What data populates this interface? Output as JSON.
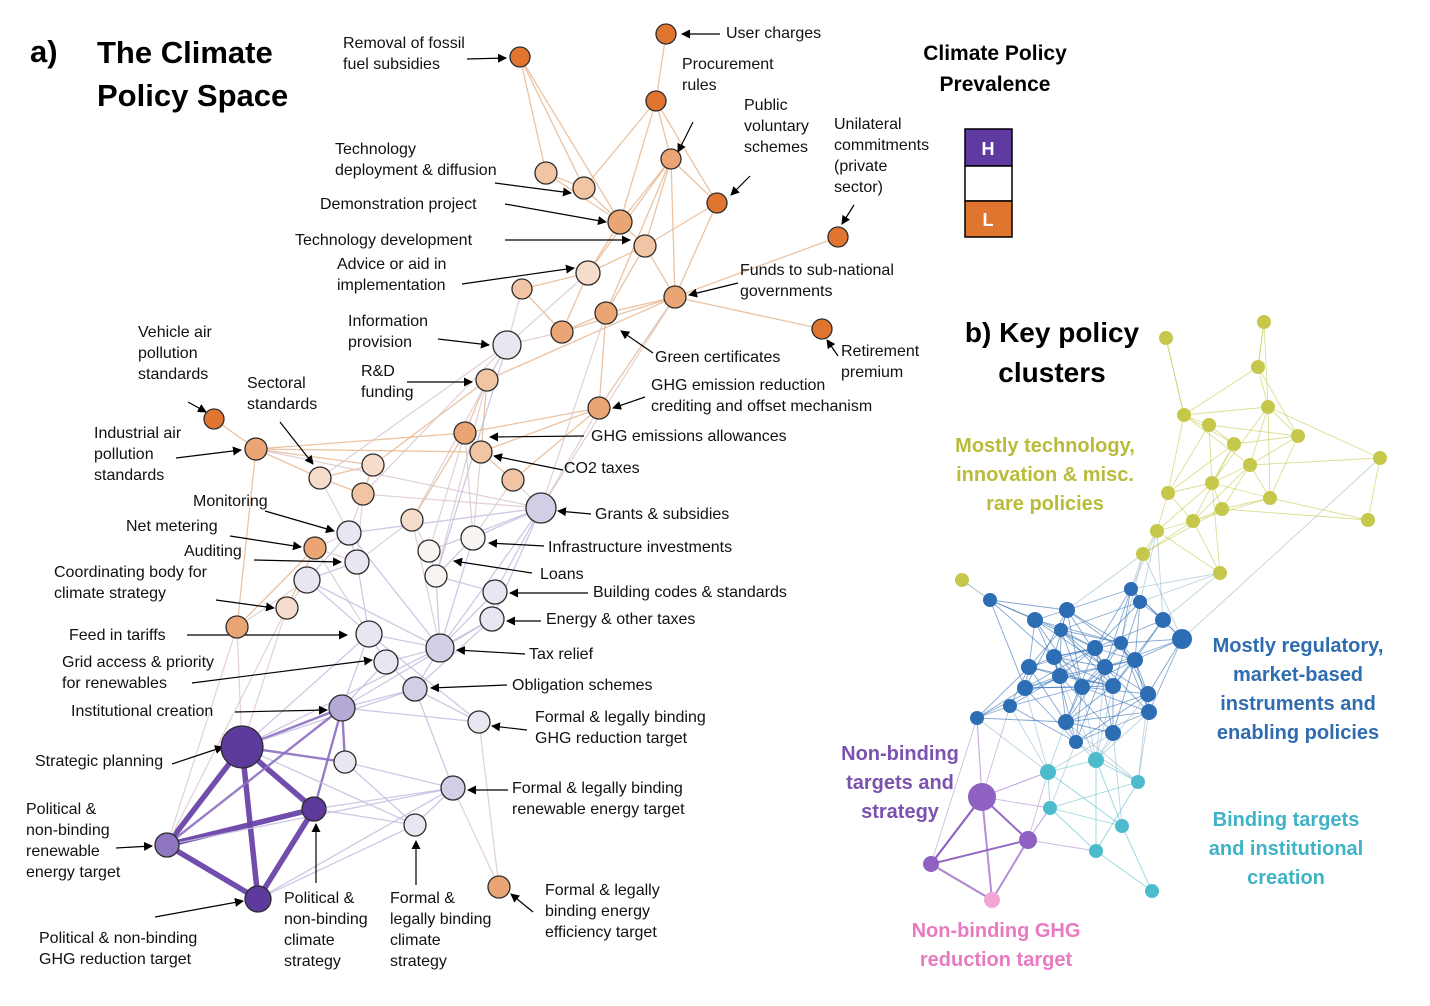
{
  "panel_a": {
    "tag": "a)",
    "title_lines": [
      "The Climate",
      "Policy Space"
    ]
  },
  "legend": {
    "title_lines": [
      "Climate Policy",
      "Prevalence"
    ],
    "high": "H",
    "low": "L",
    "colors": {
      "high": "#5f3aa0",
      "mid": "#ffffff",
      "low": "#e07530"
    }
  },
  "panel_b": {
    "title_lines": [
      "b) Key policy",
      "clusters"
    ],
    "clusters": [
      {
        "lines": [
          "Mostly technology,",
          "innovation & misc.",
          "rare policies"
        ],
        "color": "#b9bb3a"
      },
      {
        "lines": [
          "Mostly regulatory,",
          "market-based",
          "instruments and",
          "enabling policies"
        ],
        "color": "#2f6db0"
      },
      {
        "lines": [
          "Non-binding",
          "targets and",
          "strategy"
        ],
        "color": "#7b52ae"
      },
      {
        "lines": [
          "Binding targets",
          "and institutional",
          "creation"
        ],
        "color": "#3fb3c5"
      },
      {
        "lines": [
          "Non-binding GHG",
          "reduction target"
        ],
        "color": "#e87ac0"
      }
    ]
  },
  "policies": [
    {
      "lines": [
        "User charges"
      ]
    },
    {
      "lines": [
        "Removal of fossil",
        "fuel subsidies"
      ]
    },
    {
      "lines": [
        "Procurement",
        "rules"
      ]
    },
    {
      "lines": [
        "Public",
        "voluntary",
        "schemes"
      ]
    },
    {
      "lines": [
        "Unilateral",
        "commitments",
        "(private",
        "sector)"
      ]
    },
    {
      "lines": [
        "Technology",
        "deployment & diffusion"
      ]
    },
    {
      "lines": [
        "Demonstration project"
      ]
    },
    {
      "lines": [
        "Technology development"
      ]
    },
    {
      "lines": [
        "Advice or aid in",
        "implementation"
      ]
    },
    {
      "lines": [
        "Funds to sub-national",
        "governments"
      ]
    },
    {
      "lines": [
        "Information",
        "provision"
      ]
    },
    {
      "lines": [
        "Retirement",
        "premium"
      ]
    },
    {
      "lines": [
        "Green certificates"
      ]
    },
    {
      "lines": [
        "Vehicle air",
        "pollution",
        "standards"
      ]
    },
    {
      "lines": [
        "R&D",
        "funding"
      ]
    },
    {
      "lines": [
        "GHG emission reduction",
        "crediting and offset mechanism"
      ]
    },
    {
      "lines": [
        "Sectoral",
        "standards"
      ]
    },
    {
      "lines": [
        "Industrial air",
        "pollution",
        "standards"
      ]
    },
    {
      "lines": [
        "GHG emissions allowances"
      ]
    },
    {
      "lines": [
        "CO2 taxes"
      ]
    },
    {
      "lines": [
        "Monitoring"
      ]
    },
    {
      "lines": [
        "Grants & subsidies"
      ]
    },
    {
      "lines": [
        "Net metering"
      ]
    },
    {
      "lines": [
        "Auditing"
      ]
    },
    {
      "lines": [
        "Infrastructure investments"
      ]
    },
    {
      "lines": [
        "Coordinating body for",
        "climate strategy"
      ]
    },
    {
      "lines": [
        "Loans"
      ]
    },
    {
      "lines": [
        "Building codes & standards"
      ]
    },
    {
      "lines": [
        "Energy & other taxes"
      ]
    },
    {
      "lines": [
        "Feed in tariffs"
      ]
    },
    {
      "lines": [
        "Tax relief"
      ]
    },
    {
      "lines": [
        "Grid access & priority",
        "for renewables"
      ]
    },
    {
      "lines": [
        "Obligation schemes"
      ]
    },
    {
      "lines": [
        "Institutional creation"
      ]
    },
    {
      "lines": [
        "Formal & legally binding",
        "GHG reduction target"
      ]
    },
    {
      "lines": [
        "Strategic planning"
      ]
    },
    {
      "lines": [
        "Formal & legally binding",
        "renewable energy target"
      ]
    },
    {
      "lines": [
        "Political &",
        "non-binding",
        "renewable",
        "energy target"
      ]
    },
    {
      "lines": [
        "Formal & legally",
        "binding energy",
        "efficiency target"
      ]
    },
    {
      "lines": [
        "Political &",
        "non-binding",
        "climate",
        "strategy"
      ]
    },
    {
      "lines": [
        "Formal &",
        "legally binding",
        "climate",
        "strategy"
      ]
    },
    {
      "lines": [
        "Political & non-binding",
        "GHG reduction target"
      ]
    }
  ]
}
